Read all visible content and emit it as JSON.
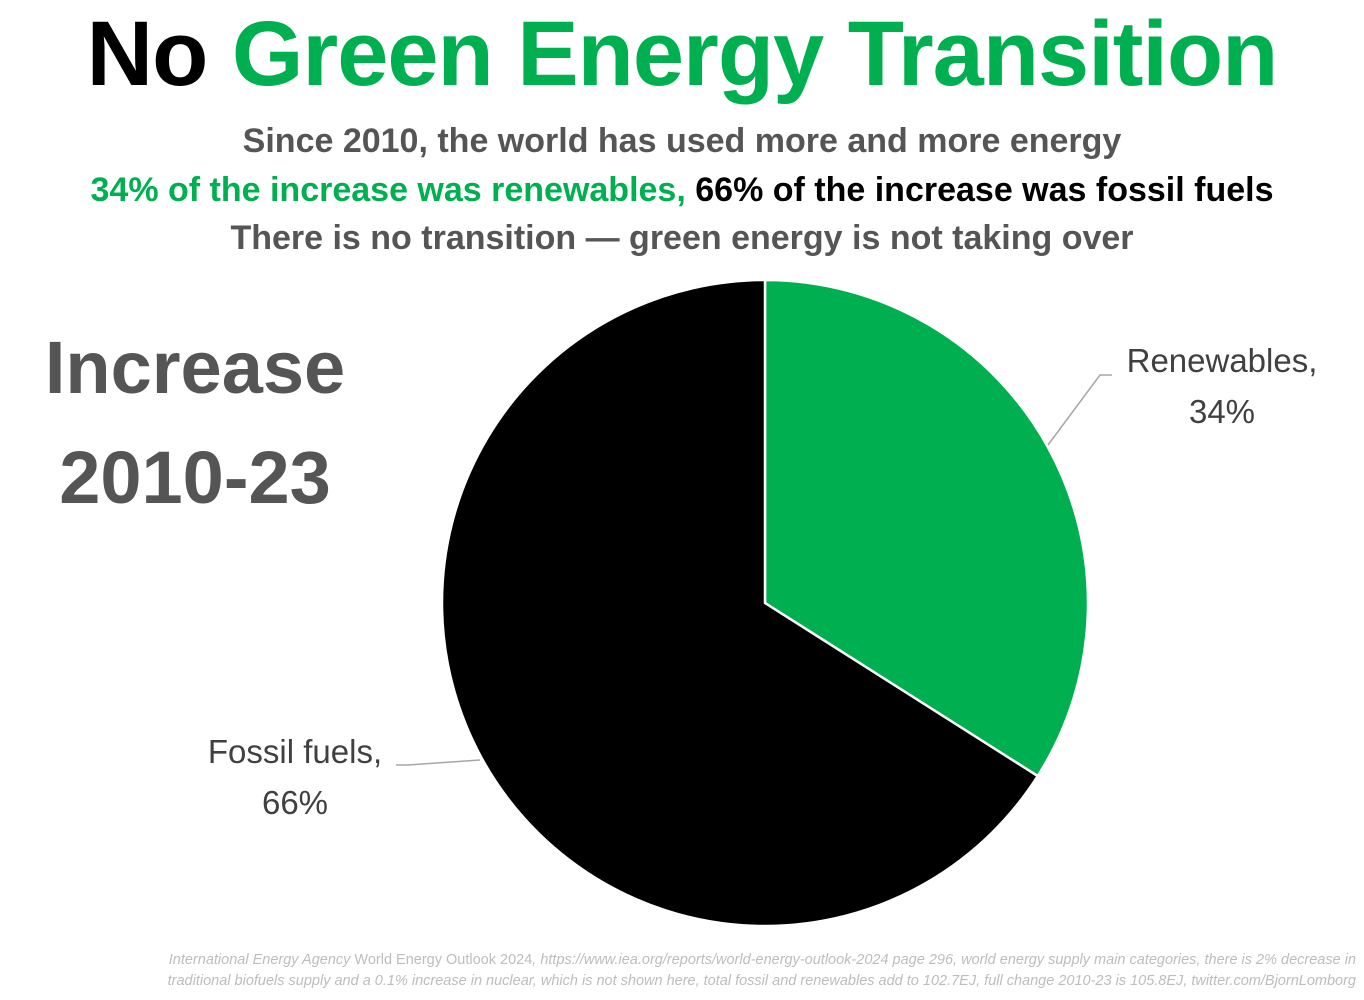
{
  "header": {
    "title_part1": "No",
    "title_part2": "Green Energy Transition",
    "line1": "Since 2010, the world has used more and more energy",
    "line2_green": "34% of the increase was renewables,",
    "line2_black": "66% of the increase was fossil fuels",
    "line3": "There is no transition — green energy is not taking over"
  },
  "side_label": {
    "line1": "Increase",
    "line2": "2010-23"
  },
  "chart_data": {
    "type": "pie",
    "start_angle_deg": 0,
    "direction": "clockwise",
    "slices": [
      {
        "name": "Renewables",
        "value": 34,
        "label_line1": "Renewables,",
        "label_line2": "34%",
        "color": "#00b050"
      },
      {
        "name": "Fossil fuels",
        "value": 66,
        "label_line1": "Fossil fuels,",
        "label_line2": "66%",
        "color": "#000000"
      }
    ]
  },
  "footnote": {
    "line1_a": "International Energy Agency ",
    "line1_b": "World Energy Outlook 2024",
    "line1_c": ", https://www.iea.org/reports/world-energy-outlook-2024 page 296, world energy supply main categories, there is 2% decrease in",
    "line2": "traditional biofuels supply and a 0.1% increase in nuclear, which is not shown here, total fossil and renewables add to 102.7EJ, full change 2010-23 is 105.8EJ, twitter.com/BjornLomborg"
  },
  "colors": {
    "accent_green": "#00b050",
    "text_grey": "#555555",
    "footnote_grey": "#bdbdbd"
  }
}
